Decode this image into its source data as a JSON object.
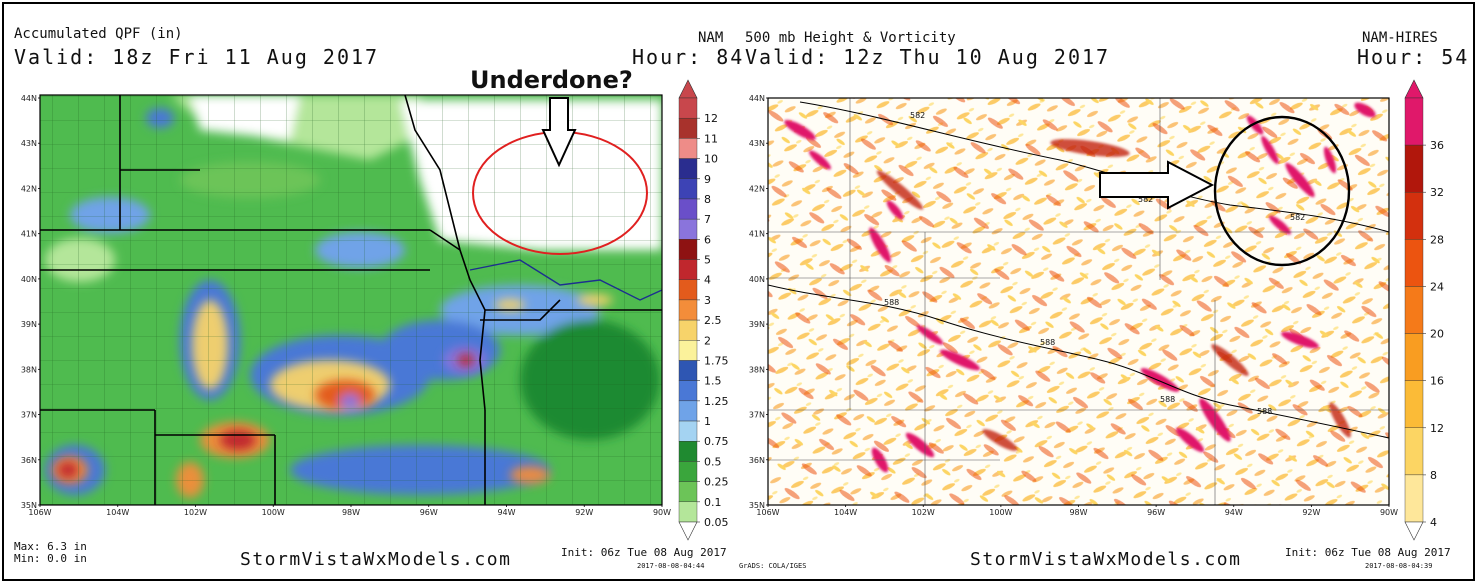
{
  "left": {
    "title_line1": "Accumulated QPF (in)",
    "valid": "Valid: 18z Fri 11 Aug 2017",
    "model": "NAM",
    "hour": "Hour: 84",
    "annotation": "Underdone?",
    "lat_labels": [
      "44N",
      "43N",
      "42N",
      "41N",
      "40N",
      "39N",
      "38N",
      "37N",
      "36N",
      "35N"
    ],
    "lon_labels": [
      "106W",
      "104W",
      "102W",
      "100W",
      "98W",
      "96W",
      "94W",
      "92W",
      "90W"
    ],
    "colorbar_labels": [
      "12",
      "11",
      "10",
      "9",
      "8",
      "7",
      "6",
      "5",
      "4",
      "3",
      "2.5",
      "2",
      "1.75",
      "1.5",
      "1.25",
      "1",
      "0.75",
      "0.5",
      "0.25",
      "0.1",
      "0.05"
    ],
    "colorbar_colors": [
      "#c8474c",
      "#a8322c",
      "#ee8c88",
      "#2a2d8f",
      "#3d43b5",
      "#6a4fc9",
      "#8a74dc",
      "#8e1212",
      "#c0272d",
      "#e35b1c",
      "#f38d3a",
      "#f7d36a",
      "#fbf29b",
      "#2e56b3",
      "#4a78d6",
      "#6fa3e8",
      "#a4d3f2",
      "#1f8a30",
      "#3aa63c",
      "#6cc458",
      "#b4e69a"
    ],
    "max": "Max: 6.3 in",
    "min": "Min: 0.0 in",
    "site": "StormVistaWxModels.com",
    "init": "Init: 06z Tue 08 Aug 2017",
    "stamp": "2017-08-08-04:44",
    "grads": "GrADS: COLA/IGES"
  },
  "right": {
    "title_line1": "500 mb Height & Vorticity",
    "valid": "Valid: 12z Thu 10 Aug 2017",
    "model": "NAM-HIRES",
    "hour": "Hour: 54",
    "lat_labels": [
      "44N",
      "43N",
      "42N",
      "41N",
      "40N",
      "39N",
      "38N",
      "37N",
      "36N",
      "35N"
    ],
    "lon_labels": [
      "106W",
      "104W",
      "102W",
      "100W",
      "98W",
      "96W",
      "94W",
      "92W",
      "90W"
    ],
    "colorbar_labels": [
      "36",
      "32",
      "28",
      "24",
      "20",
      "16",
      "12",
      "8",
      "4"
    ],
    "colorbar_colors": [
      "#e0186a",
      "#b1170c",
      "#d3300e",
      "#ec5410",
      "#f57a19",
      "#f99d21",
      "#fbbb37",
      "#fcd563",
      "#fee79a"
    ],
    "contour_labels": [
      "582",
      "582",
      "582",
      "588",
      "588",
      "588",
      "588"
    ],
    "site": "StormVistaWxModels.com",
    "init": "Init: 06z Tue 08 Aug 2017",
    "stamp": "2017-08-08-04:39"
  }
}
